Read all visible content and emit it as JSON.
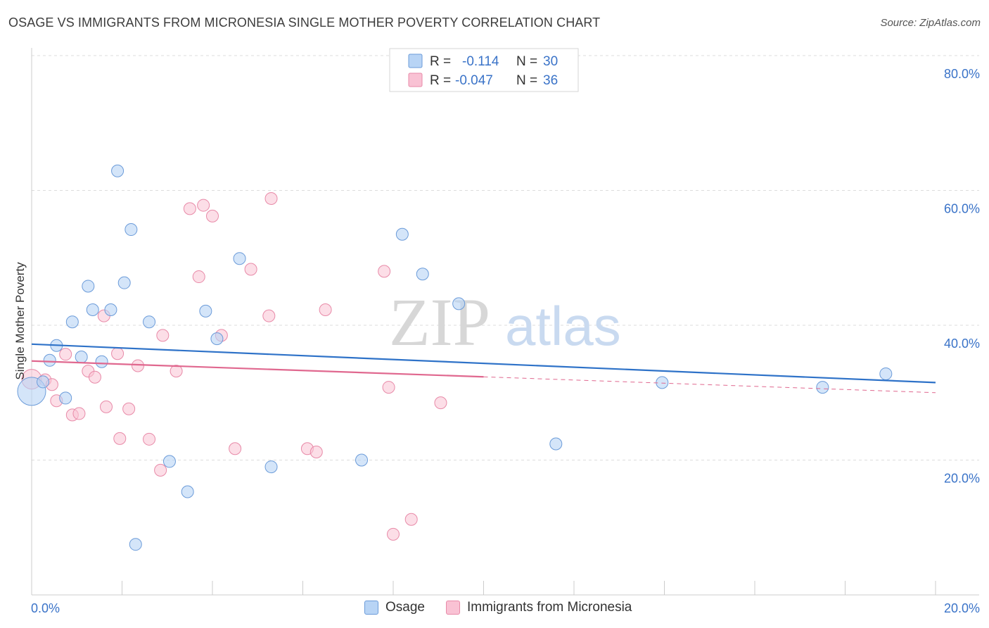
{
  "title": "OSAGE VS IMMIGRANTS FROM MICRONESIA SINGLE MOTHER POVERTY CORRELATION CHART",
  "source": "Source: ZipAtlas.com",
  "watermark": {
    "zip": "ZIP",
    "atlas": "atlas"
  },
  "legend_top": {
    "rows": [
      {
        "r_label": "R =",
        "r_value": "-0.114",
        "n_label": "N =",
        "n_value": "30"
      },
      {
        "r_label": "R =",
        "r_value": "-0.047",
        "n_label": "N =",
        "n_value": "36"
      }
    ]
  },
  "legend_bottom": [
    "Osage",
    "Immigrants from Micronesia"
  ],
  "colors": {
    "osage_fill": "#b8d4f5",
    "osage_stroke": "#6b9bd9",
    "osage_line": "#2e72c8",
    "micro_fill": "#f9c2d4",
    "micro_stroke": "#e88aa8",
    "micro_line": "#e0688f",
    "tick_label": "#3a73c8",
    "grid": "#dddddd"
  },
  "chart_data": {
    "type": "scatter",
    "title": "OSAGE VS IMMIGRANTS FROM MICRONESIA SINGLE MOTHER POVERTY CORRELATION CHART",
    "xlabel": "",
    "ylabel": "Single Mother Poverty",
    "xlim": [
      0,
      20
    ],
    "ylim": [
      0,
      80
    ],
    "x_tick_labels": [
      "0.0%",
      "20.0%"
    ],
    "y_ticks": [
      20,
      40,
      60,
      80
    ],
    "y_tick_labels": [
      "20.0%",
      "40.0%",
      "60.0%",
      "80.0%"
    ],
    "grid": true,
    "series": [
      {
        "name": "Osage",
        "R": -0.114,
        "N": 30,
        "trend": {
          "x0": 0,
          "y0": 37.2,
          "x1": 20,
          "y1": 31.5
        },
        "points": [
          [
            0.0,
            30.2
          ],
          [
            0.25,
            31.6
          ],
          [
            0.4,
            34.8
          ],
          [
            0.55,
            37.0
          ],
          [
            0.75,
            29.2
          ],
          [
            0.9,
            40.5
          ],
          [
            1.1,
            35.3
          ],
          [
            1.25,
            45.8
          ],
          [
            1.35,
            42.3
          ],
          [
            1.55,
            34.6
          ],
          [
            1.75,
            42.3
          ],
          [
            1.9,
            62.9
          ],
          [
            2.05,
            46.3
          ],
          [
            2.2,
            54.2
          ],
          [
            2.3,
            7.5
          ],
          [
            2.6,
            40.5
          ],
          [
            3.05,
            19.8
          ],
          [
            3.45,
            15.3
          ],
          [
            3.85,
            42.1
          ],
          [
            4.1,
            38.0
          ],
          [
            4.6,
            49.9
          ],
          [
            5.3,
            19.0
          ],
          [
            7.3,
            20.0
          ],
          [
            8.2,
            53.5
          ],
          [
            8.65,
            47.6
          ],
          [
            9.45,
            43.2
          ],
          [
            11.6,
            22.4
          ],
          [
            13.95,
            31.5
          ],
          [
            17.5,
            30.8
          ],
          [
            18.9,
            32.8
          ]
        ]
      },
      {
        "name": "Immigrants from Micronesia",
        "R": -0.047,
        "N": 36,
        "trend": {
          "x0": 0,
          "y0": 34.7,
          "x1": 20,
          "y1": 30.0,
          "solid_until_x": 10.0
        },
        "points": [
          [
            0.0,
            32.0
          ],
          [
            0.3,
            31.9
          ],
          [
            0.45,
            31.2
          ],
          [
            0.55,
            28.8
          ],
          [
            0.75,
            35.7
          ],
          [
            0.9,
            26.7
          ],
          [
            1.05,
            26.9
          ],
          [
            1.25,
            33.2
          ],
          [
            1.4,
            32.3
          ],
          [
            1.6,
            41.4
          ],
          [
            1.65,
            27.9
          ],
          [
            1.9,
            35.8
          ],
          [
            1.95,
            23.2
          ],
          [
            2.15,
            27.6
          ],
          [
            2.35,
            34.0
          ],
          [
            2.6,
            23.1
          ],
          [
            2.85,
            18.5
          ],
          [
            2.9,
            38.5
          ],
          [
            3.2,
            33.2
          ],
          [
            3.5,
            57.3
          ],
          [
            3.7,
            47.2
          ],
          [
            3.8,
            57.8
          ],
          [
            4.0,
            56.2
          ],
          [
            4.2,
            38.5
          ],
          [
            4.5,
            21.7
          ],
          [
            4.85,
            48.3
          ],
          [
            5.25,
            41.4
          ],
          [
            5.3,
            58.8
          ],
          [
            6.1,
            21.7
          ],
          [
            6.3,
            21.2
          ],
          [
            6.5,
            42.3
          ],
          [
            7.8,
            48.0
          ],
          [
            7.9,
            30.8
          ],
          [
            8.0,
            9.0
          ],
          [
            8.4,
            11.2
          ],
          [
            9.05,
            28.5
          ]
        ]
      }
    ]
  }
}
